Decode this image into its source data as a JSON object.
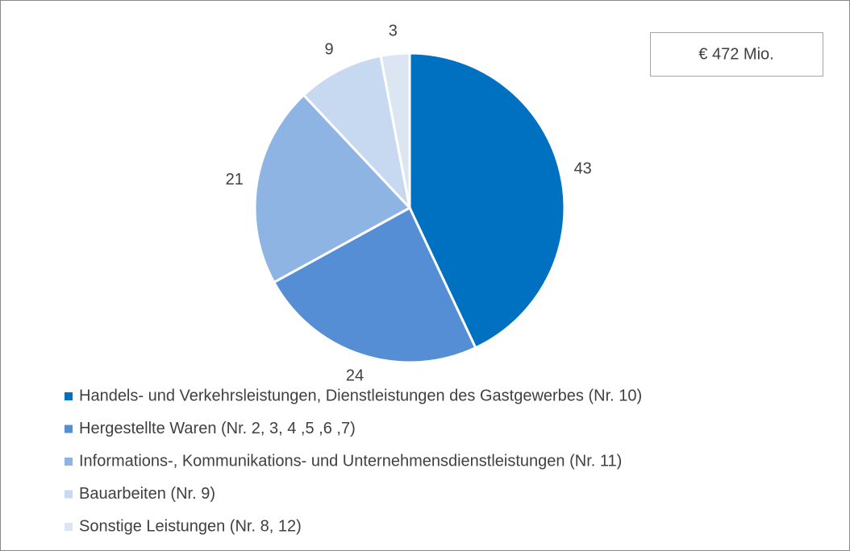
{
  "chart_data": {
    "type": "pie",
    "categories": [
      "Handels- und Verkehrsleistungen, Dienstleistungen des Gastgewerbes (Nr. 10)",
      "Hergestellte Waren (Nr. 2, 3, 4 ,5 ,6 ,7)",
      "Informations-, Kommunikations- und Unternehmensdienstleistungen (Nr. 11)",
      "Bauarbeiten (Nr. 9)",
      "Sonstige Leistungen (Nr. 8, 12)"
    ],
    "values": [
      43,
      24,
      21,
      9,
      3
    ],
    "colors": [
      "#0070c0",
      "#558ed5",
      "#8eb4e3",
      "#c6d9f1",
      "#dce6f2"
    ],
    "annotation": "€ 472 Mio."
  }
}
